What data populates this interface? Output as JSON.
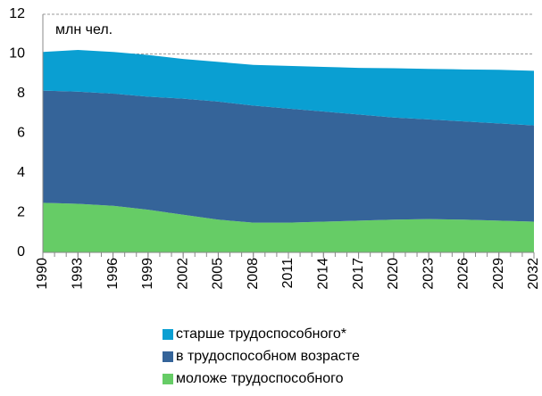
{
  "chart_data": {
    "type": "stacked-area",
    "annotation": "млн чел.",
    "x": [
      1990,
      1993,
      1996,
      1999,
      2002,
      2005,
      2008,
      2011,
      2014,
      2017,
      2020,
      2023,
      2026,
      2029,
      2032
    ],
    "series": [
      {
        "name": "моложе трудоспособного",
        "color": "#66cc66",
        "values": [
          2.5,
          2.45,
          2.35,
          2.15,
          1.9,
          1.65,
          1.5,
          1.5,
          1.55,
          1.6,
          1.65,
          1.68,
          1.65,
          1.6,
          1.55
        ]
      },
      {
        "name": "в трудоспособном возрасте",
        "color": "#356499",
        "values": [
          5.65,
          5.65,
          5.65,
          5.7,
          5.85,
          5.95,
          5.9,
          5.75,
          5.55,
          5.35,
          5.15,
          5.02,
          4.95,
          4.9,
          4.85
        ]
      },
      {
        "name": "старше трудоспособного*",
        "color": "#0a9fd2",
        "values": [
          1.95,
          2.1,
          2.1,
          2.1,
          2.0,
          2.0,
          2.05,
          2.15,
          2.25,
          2.35,
          2.48,
          2.55,
          2.62,
          2.7,
          2.75
        ]
      }
    ],
    "xlim": [
      1990,
      2032
    ],
    "xticks": [
      1990,
      1993,
      1996,
      1999,
      2002,
      2005,
      2008,
      2011,
      2014,
      2017,
      2020,
      2023,
      2026,
      2029,
      2032
    ],
    "ylim": [
      0,
      12
    ],
    "yticks": [
      0,
      2,
      4,
      6,
      8,
      10,
      12
    ],
    "grid": true,
    "legend": "bottom"
  }
}
